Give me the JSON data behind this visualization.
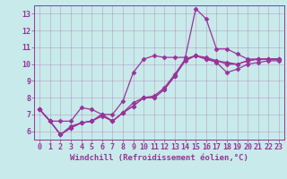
{
  "background_color": "#c8eaea",
  "line_color": "#993399",
  "marker": "D",
  "markersize": 2.5,
  "linewidth": 0.9,
  "xlabel": "Windchill (Refroidissement éolien,°C)",
  "xlabel_fontsize": 6.5,
  "tick_fontsize": 6,
  "xlim": [
    -0.5,
    23.5
  ],
  "ylim": [
    5.5,
    13.5
  ],
  "yticks": [
    6,
    7,
    8,
    9,
    10,
    11,
    12,
    13
  ],
  "xticks": [
    0,
    1,
    2,
    3,
    4,
    5,
    6,
    7,
    8,
    9,
    10,
    11,
    12,
    13,
    14,
    15,
    16,
    17,
    18,
    19,
    20,
    21,
    22,
    23
  ],
  "curves": [
    [
      7.3,
      6.6,
      6.6,
      6.6,
      7.4,
      7.3,
      7.0,
      7.0,
      7.8,
      9.5,
      10.3,
      10.5,
      10.4,
      10.4,
      10.4,
      13.3,
      12.7,
      10.9,
      10.9,
      10.6,
      10.3,
      10.3,
      10.3,
      10.3
    ],
    [
      7.3,
      6.6,
      5.8,
      6.2,
      6.5,
      6.6,
      7.0,
      6.6,
      7.1,
      7.5,
      8.0,
      8.0,
      8.5,
      9.3,
      10.3,
      10.5,
      10.3,
      10.2,
      10.0,
      10.0,
      10.2,
      10.3,
      10.3,
      10.3
    ],
    [
      7.3,
      6.6,
      5.8,
      6.2,
      6.5,
      6.6,
      6.9,
      6.6,
      7.1,
      7.5,
      8.0,
      8.0,
      8.5,
      9.3,
      10.2,
      10.5,
      10.3,
      10.1,
      9.5,
      9.7,
      10.0,
      10.1,
      10.2,
      10.2
    ],
    [
      7.3,
      6.6,
      5.8,
      6.3,
      6.5,
      6.6,
      7.0,
      6.6,
      7.1,
      7.7,
      8.0,
      8.1,
      8.6,
      9.4,
      10.3,
      10.5,
      10.4,
      10.2,
      10.1,
      10.0,
      10.2,
      10.3,
      10.3,
      10.3
    ]
  ],
  "grid_color": "#993399",
  "grid_alpha": 0.4,
  "grid_linewidth": 0.4
}
